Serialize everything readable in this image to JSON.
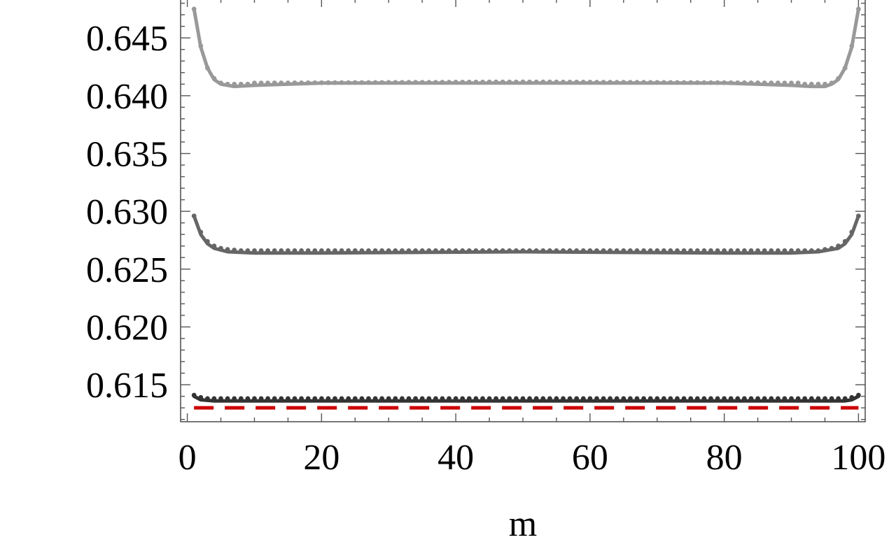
{
  "chart_data": {
    "type": "line",
    "title": "",
    "xlabel": "m",
    "ylabel": "",
    "xlim": [
      -1,
      101
    ],
    "ylim": [
      0.6118,
      0.6484
    ],
    "x_ticks": [
      0,
      20,
      40,
      60,
      80,
      100
    ],
    "x_tick_labels": [
      "0",
      "20",
      "40",
      "60",
      "80",
      "100"
    ],
    "y_ticks": [
      0.615,
      0.62,
      0.625,
      0.63,
      0.635,
      0.64,
      0.645
    ],
    "y_tick_labels": [
      "0.615",
      "0.620",
      "0.625",
      "0.630",
      "0.635",
      "0.640",
      "0.645"
    ],
    "grid": false,
    "legend": "none",
    "m_range": [
      1,
      100
    ],
    "series": [
      {
        "color": "#999999",
        "line_points": [
          [
            1,
            0.6475
          ],
          [
            2,
            0.6442
          ],
          [
            3,
            0.6424
          ],
          [
            4,
            0.6414
          ],
          [
            5,
            0.641
          ],
          [
            7,
            0.6408
          ],
          [
            10,
            0.6409
          ],
          [
            20,
            0.6411
          ],
          [
            50,
            0.6411
          ],
          [
            80,
            0.6411
          ],
          [
            90,
            0.6409
          ],
          [
            93,
            0.6408
          ],
          [
            95,
            0.6408
          ],
          [
            96,
            0.641
          ],
          [
            97,
            0.6414
          ],
          [
            98,
            0.6424
          ],
          [
            99,
            0.6442
          ],
          [
            100,
            0.6475
          ]
        ],
        "dot_points": [
          [
            1,
            0.6475
          ],
          [
            2,
            0.6443
          ],
          [
            3,
            0.6424
          ],
          [
            4,
            0.6415
          ],
          [
            5,
            0.6411
          ],
          [
            6,
            0.641
          ],
          [
            7,
            0.641
          ],
          [
            8,
            0.641
          ],
          [
            9,
            0.641
          ],
          [
            10,
            0.6411
          ],
          [
            50,
            0.6412
          ],
          [
            91,
            0.6411
          ],
          [
            92,
            0.641
          ],
          [
            93,
            0.641
          ],
          [
            94,
            0.641
          ],
          [
            95,
            0.641
          ],
          [
            96,
            0.6411
          ],
          [
            97,
            0.6415
          ],
          [
            98,
            0.6424
          ],
          [
            99,
            0.6443
          ],
          [
            100,
            0.6475
          ]
        ]
      },
      {
        "color": "#666666",
        "line_points": [
          [
            1,
            0.6296
          ],
          [
            2,
            0.628
          ],
          [
            3,
            0.6272
          ],
          [
            4,
            0.6268
          ],
          [
            6,
            0.6265
          ],
          [
            10,
            0.6264
          ],
          [
            20,
            0.6264
          ],
          [
            50,
            0.6265
          ],
          [
            80,
            0.6264
          ],
          [
            90,
            0.6264
          ],
          [
            94,
            0.6265
          ],
          [
            96,
            0.6267
          ],
          [
            97,
            0.6268
          ],
          [
            98,
            0.6272
          ],
          [
            99,
            0.628
          ],
          [
            100,
            0.6296
          ]
        ],
        "dot_points": [
          [
            1,
            0.6296
          ],
          [
            2,
            0.6282
          ],
          [
            3,
            0.6274
          ],
          [
            4,
            0.627
          ],
          [
            5,
            0.6268
          ],
          [
            6,
            0.6267
          ],
          [
            8,
            0.6266
          ],
          [
            10,
            0.6266
          ],
          [
            50,
            0.6266
          ],
          [
            90,
            0.6266
          ],
          [
            92,
            0.6266
          ],
          [
            94,
            0.6266
          ],
          [
            95,
            0.6267
          ],
          [
            96,
            0.6268
          ],
          [
            97,
            0.627
          ],
          [
            98,
            0.6274
          ],
          [
            99,
            0.6282
          ],
          [
            100,
            0.6296
          ]
        ]
      },
      {
        "color": "#333333",
        "line_points": [
          [
            1,
            0.614
          ],
          [
            2,
            0.6137
          ],
          [
            4,
            0.6136
          ],
          [
            10,
            0.6136
          ],
          [
            50,
            0.6136
          ],
          [
            90,
            0.6136
          ],
          [
            96,
            0.6136
          ],
          [
            98,
            0.6136
          ],
          [
            99,
            0.6137
          ],
          [
            100,
            0.614
          ]
        ],
        "dot_points": [
          [
            1,
            0.6141
          ],
          [
            2,
            0.6139
          ],
          [
            3,
            0.6138
          ],
          [
            5,
            0.6138
          ],
          [
            50,
            0.6138
          ],
          [
            95,
            0.6138
          ],
          [
            97,
            0.6138
          ],
          [
            98,
            0.6138
          ],
          [
            99,
            0.6139
          ],
          [
            100,
            0.6141
          ]
        ]
      },
      {
        "color": "#cc0000",
        "dashed": true,
        "value": 0.613
      }
    ]
  }
}
